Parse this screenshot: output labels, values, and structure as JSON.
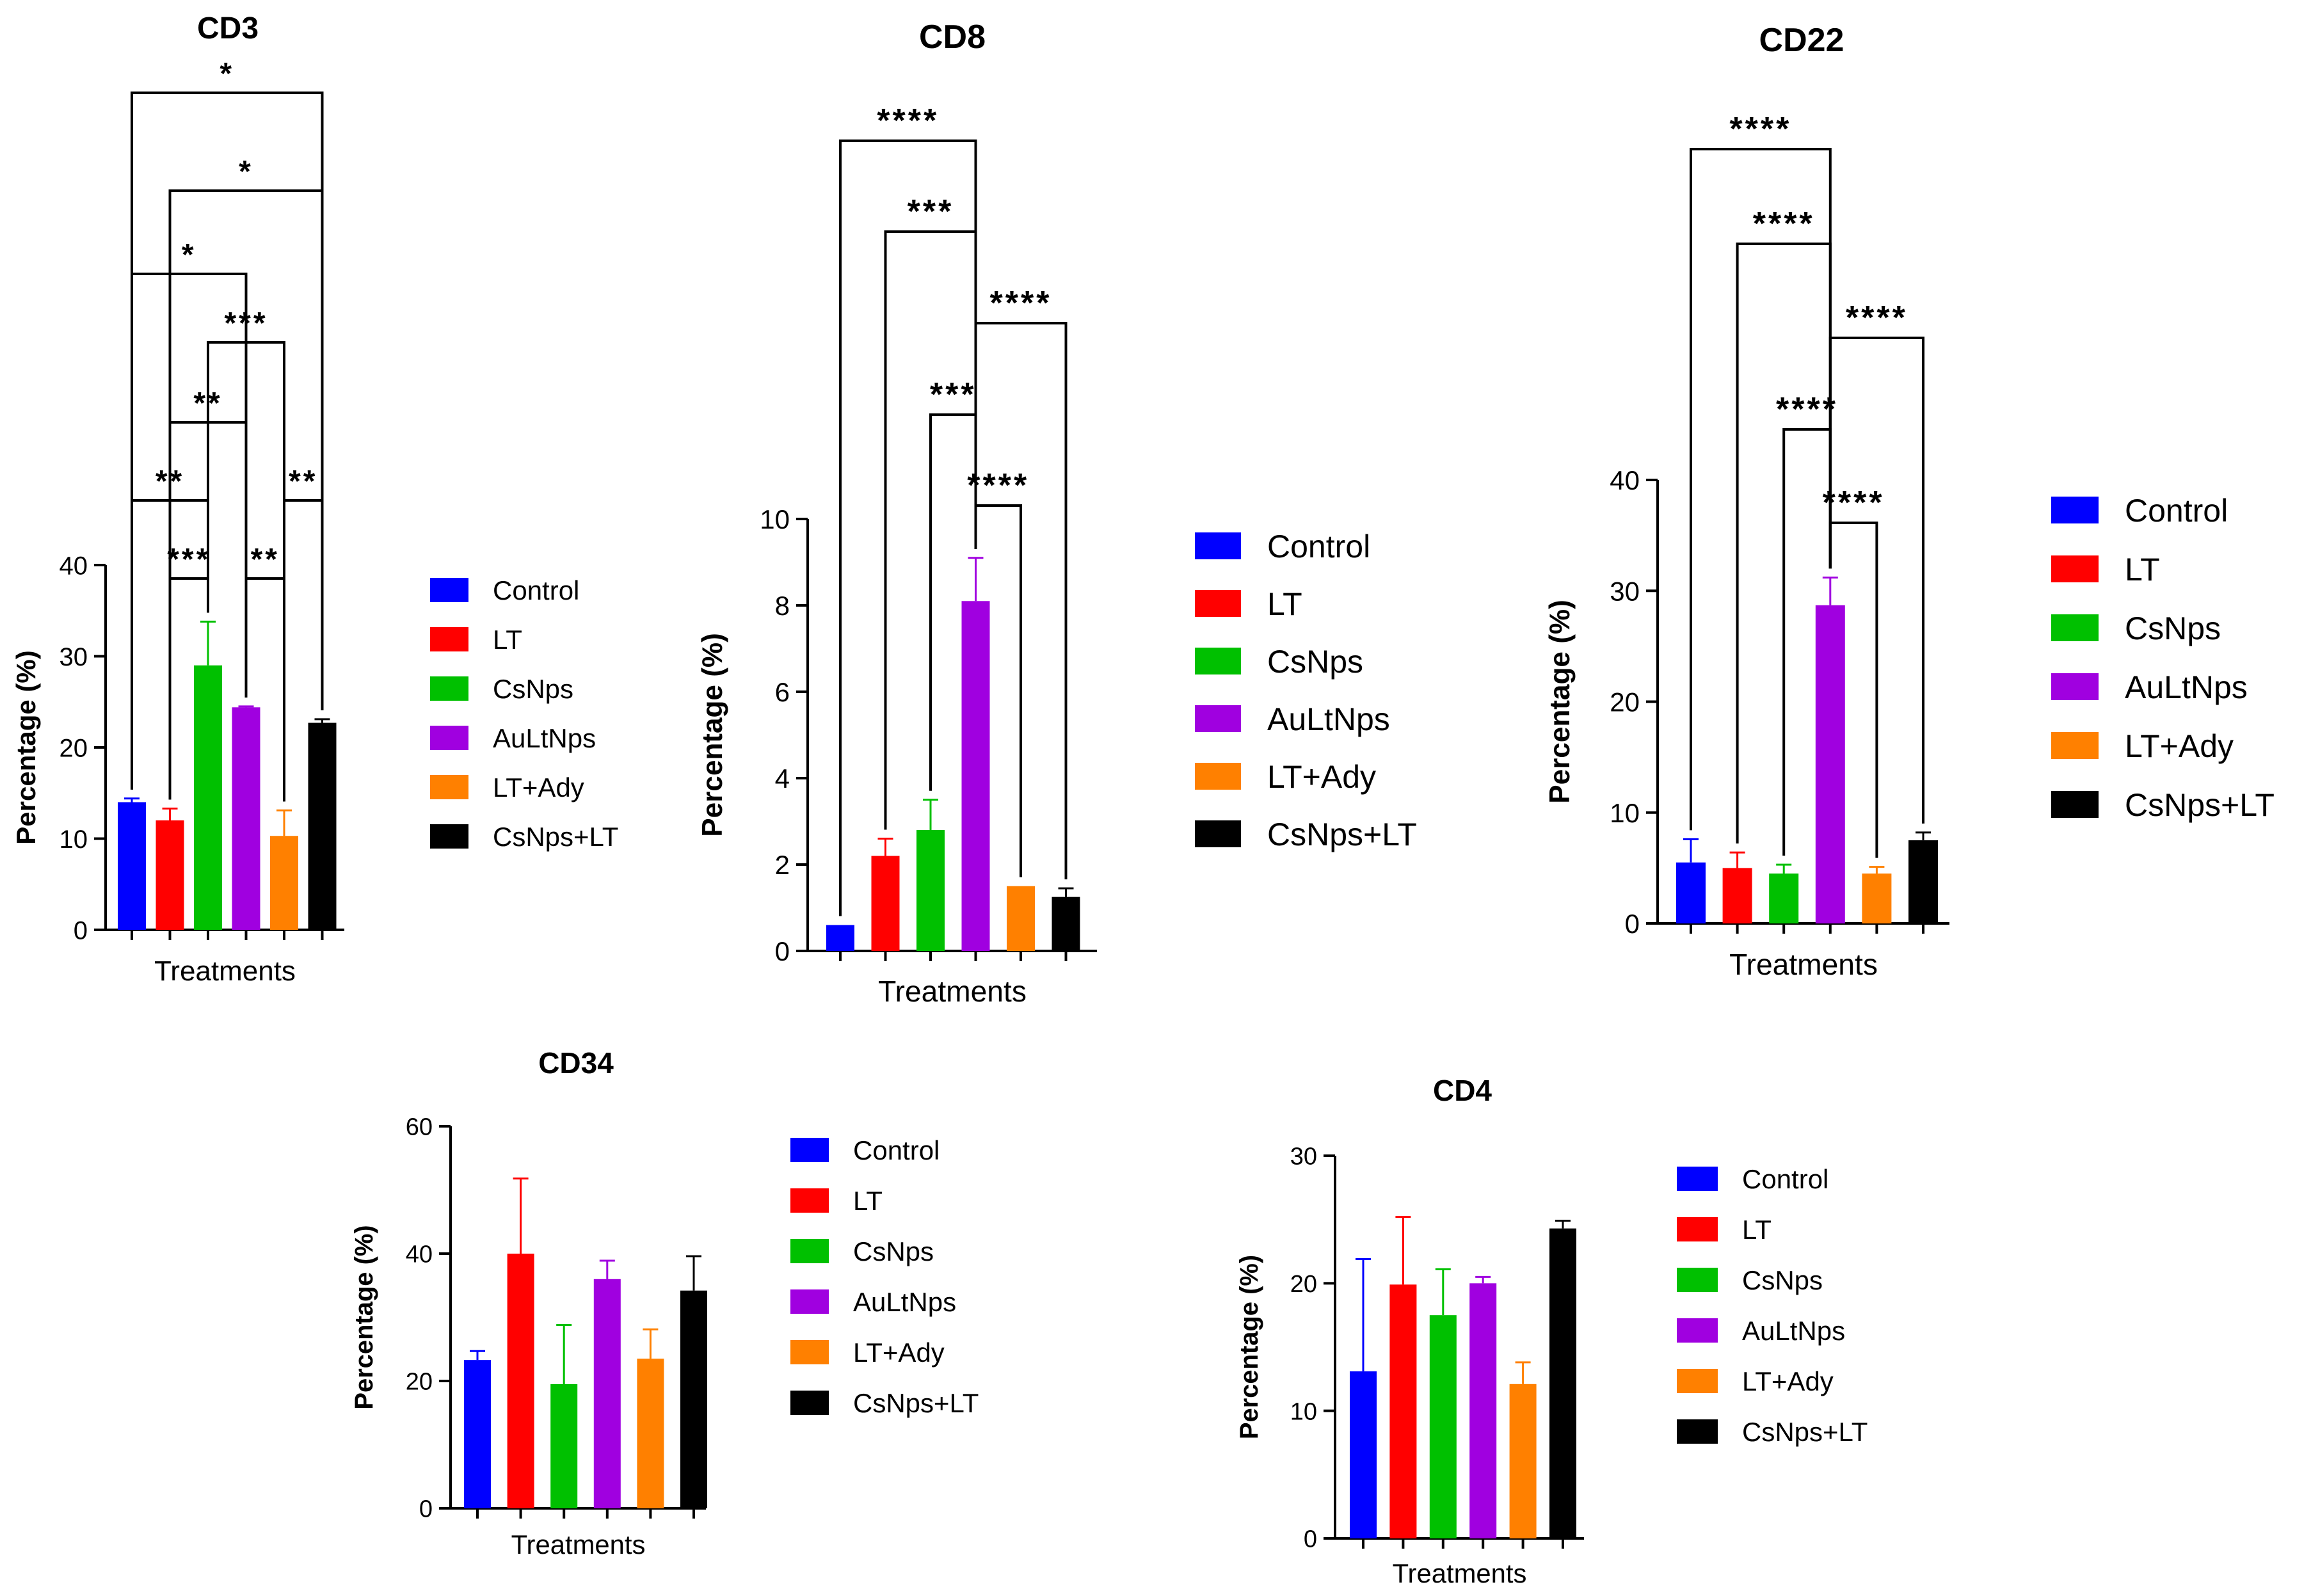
{
  "colors": {
    "Control": "#0000ff",
    "LT": "#ff0000",
    "CsNps": "#00c000",
    "AuLtNps": "#a000e0",
    "LT+Ady": "#ff8000",
    "CsNps+LT": "#000000"
  },
  "chart_data": [
    {
      "type": "bar",
      "title": "CD3",
      "xlabel": "Treatments",
      "ylabel": "Percentage (%)",
      "ylim": [
        0,
        40
      ],
      "yticks": [
        0,
        10,
        20,
        30,
        40
      ],
      "categories": [
        "Control",
        "LT",
        "CsNps",
        "AuLtNps",
        "LT+Ady",
        "CsNps+LT"
      ],
      "values": [
        14,
        12,
        29,
        24.4,
        10.3,
        22.7
      ],
      "errors": [
        0.4,
        1.3,
        4.8,
        0.1,
        2.8,
        0.4
      ],
      "legend": [
        "Control",
        "LT",
        "CsNps",
        "AuLtNps",
        "LT+Ady",
        "CsNps+LT"
      ],
      "significance": [
        {
          "from": 0,
          "to": 5,
          "label": "*"
        },
        {
          "from": 1,
          "to": 5,
          "label": "*"
        },
        {
          "from": 0,
          "to": 3,
          "label": "*"
        },
        {
          "from": 2,
          "to": 4,
          "label": "***"
        },
        {
          "from": 1,
          "to": 3,
          "label": "**"
        },
        {
          "from": 0,
          "to": 2,
          "label": "**"
        },
        {
          "from": 4,
          "to": 5,
          "label": "**"
        },
        {
          "from": 1,
          "to": 2,
          "label": "***"
        },
        {
          "from": 3,
          "to": 4,
          "label": "**"
        }
      ]
    },
    {
      "type": "bar",
      "title": "CD8",
      "xlabel": "Treatments",
      "ylabel": "Percentage (%)",
      "ylim": [
        0,
        10
      ],
      "yticks": [
        0,
        2,
        4,
        6,
        8,
        10
      ],
      "categories": [
        "Control",
        "LT",
        "CsNps",
        "AuLtNps",
        "LT+Ady",
        "CsNps+LT"
      ],
      "values": [
        0.6,
        2.2,
        2.8,
        8.1,
        1.5,
        1.25
      ],
      "errors": [
        0,
        0.4,
        0.7,
        1.0,
        0,
        0.2
      ],
      "legend": [
        "Control",
        "LT",
        "CsNps",
        "AuLtNps",
        "LT+Ady",
        "CsNps+LT"
      ],
      "significance": [
        {
          "from": 0,
          "to": 3,
          "label": "****"
        },
        {
          "from": 1,
          "to": 3,
          "label": "***"
        },
        {
          "from": 3,
          "to": 5,
          "label": "****"
        },
        {
          "from": 2,
          "to": 3,
          "label": "***"
        },
        {
          "from": 3,
          "to": 4,
          "label": "****"
        }
      ]
    },
    {
      "type": "bar",
      "title": "CD22",
      "xlabel": "Treatments",
      "ylabel": "Percentage (%)",
      "ylim": [
        0,
        40
      ],
      "yticks": [
        0,
        10,
        20,
        30,
        40
      ],
      "categories": [
        "Control",
        "LT",
        "CsNps",
        "AuLtNps",
        "LT+Ady",
        "CsNps+LT"
      ],
      "values": [
        5.5,
        5,
        4.5,
        28.7,
        4.5,
        7.5
      ],
      "errors": [
        2.1,
        1.4,
        0.8,
        2.5,
        0.6,
        0.7
      ],
      "legend": [
        "Control",
        "LT",
        "CsNps",
        "AuLtNps",
        "LT+Ady",
        "CsNps+LT"
      ],
      "significance": [
        {
          "from": 0,
          "to": 3,
          "label": "****"
        },
        {
          "from": 1,
          "to": 3,
          "label": "****"
        },
        {
          "from": 3,
          "to": 5,
          "label": "****"
        },
        {
          "from": 2,
          "to": 3,
          "label": "****"
        },
        {
          "from": 3,
          "to": 4,
          "label": "****"
        }
      ]
    },
    {
      "type": "bar",
      "title": "CD34",
      "xlabel": "Treatments",
      "ylabel": "Percentage (%)",
      "ylim": [
        0,
        60
      ],
      "yticks": [
        0,
        20,
        40,
        60
      ],
      "categories": [
        "Control",
        "LT",
        "CsNps",
        "AuLtNps",
        "LT+Ady",
        "CsNps+LT"
      ],
      "values": [
        23.3,
        40,
        19.5,
        36,
        23.5,
        34.2
      ],
      "errors": [
        1.4,
        11.8,
        9.3,
        2.9,
        4.6,
        5.4
      ],
      "legend": [
        "Control",
        "LT",
        "CsNps",
        "AuLtNps",
        "LT+Ady",
        "CsNps+LT"
      ],
      "significance": []
    },
    {
      "type": "bar",
      "title": "CD4",
      "xlabel": "Treatments",
      "ylabel": "Percentage (%)",
      "ylim": [
        0,
        30
      ],
      "yticks": [
        0,
        10,
        20,
        30
      ],
      "categories": [
        "Control",
        "LT",
        "CsNps",
        "AuLtNps",
        "LT+Ady",
        "CsNps+LT"
      ],
      "values": [
        13.1,
        19.9,
        17.5,
        20,
        12.1,
        24.3
      ],
      "errors": [
        8.8,
        5.3,
        3.6,
        0.5,
        1.7,
        0.6
      ],
      "legend": [
        "Control",
        "LT",
        "CsNps",
        "AuLtNps",
        "LT+Ady",
        "CsNps+LT"
      ],
      "significance": []
    }
  ]
}
